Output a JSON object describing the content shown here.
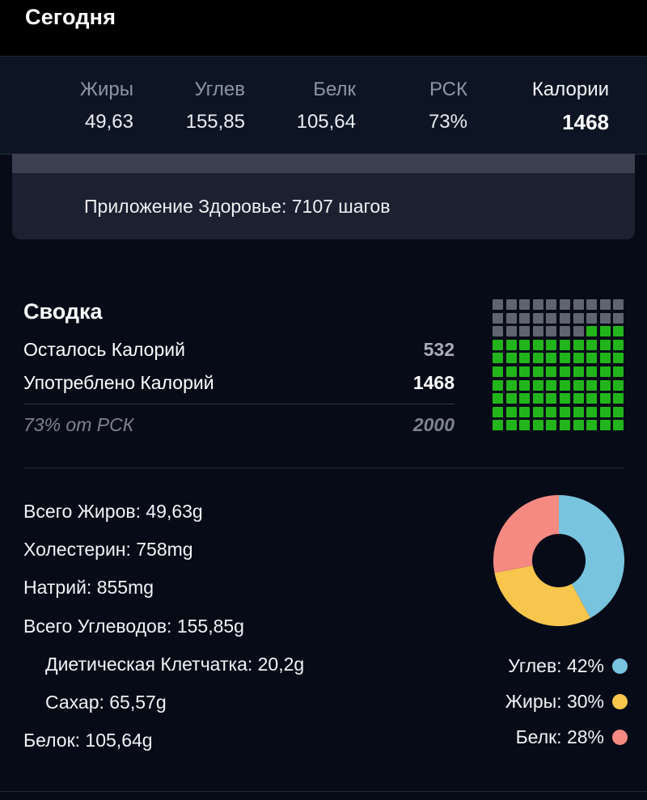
{
  "header": {
    "title": "Сегодня"
  },
  "macros": [
    {
      "label": "Жиры",
      "value": "49,63"
    },
    {
      "label": "Углев",
      "value": "155,85"
    },
    {
      "label": "Белк",
      "value": "105,64"
    },
    {
      "label": "РСК",
      "value": "73%"
    },
    {
      "label": "Калории",
      "value": "1468"
    }
  ],
  "health": {
    "text": "Приложение Здоровье: 7107 шагов"
  },
  "summary": {
    "title": "Сводка",
    "remaining_label": "Осталось Калорий",
    "remaining_value": "532",
    "consumed_label": "Употреблено Калорий",
    "consumed_value": "1468",
    "rsk_label": "73% от РСК",
    "rsk_value": "2000"
  },
  "waffle": {
    "filled_fraction": 0.73,
    "colors": {
      "filled": "#22b51b",
      "empty": "#5f6470"
    }
  },
  "nutrients": [
    "Всего Жиров: 49,63g",
    "Холестерин: 758mg",
    "Натрий: 855mg",
    "Всего Углеводов: 155,85g",
    "Диетическая Клетчатка: 20,2g",
    "Сахар: 65,57g",
    "Белок: 105,64g"
  ],
  "chart_data": {
    "type": "pie",
    "categories": [
      "Углев",
      "Жиры",
      "Белк"
    ],
    "values": [
      42,
      30,
      28
    ],
    "colors": [
      "#78c3de",
      "#f8c54d",
      "#f48a82"
    ],
    "legend": [
      "Углев: 42%",
      "Жиры: 30%",
      "Белк: 28%"
    ]
  }
}
